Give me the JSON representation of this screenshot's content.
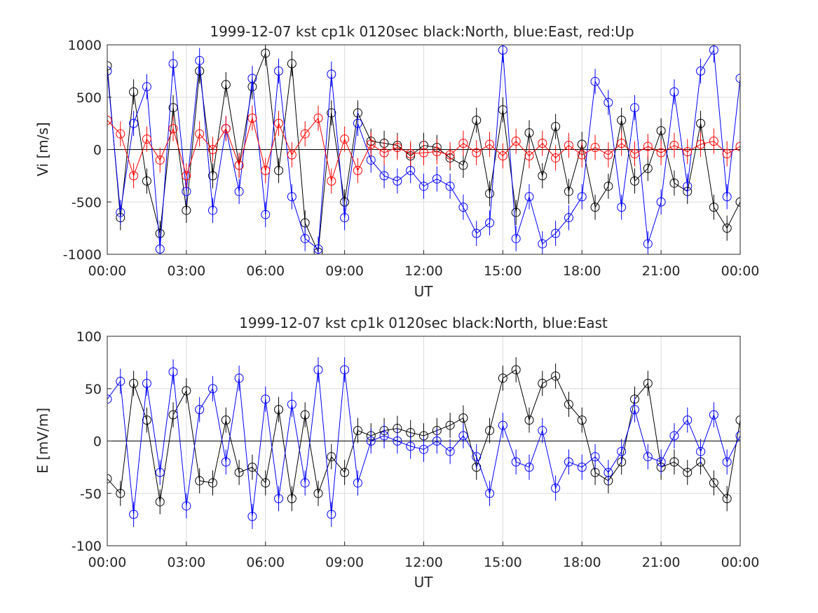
{
  "chart_data": [
    {
      "type": "line",
      "title": "1999-12-07 kst cp1k 0120sec black:North, blue:East, red:Up",
      "xlabel": "UT",
      "ylabel": "Vi [m/s]",
      "ylim": [
        -1000,
        1000
      ],
      "xlim_hours": [
        0,
        24
      ],
      "x_tick_labels": [
        "00:00",
        "03:00",
        "06:00",
        "09:00",
        "12:00",
        "15:00",
        "18:00",
        "21:00",
        "00:00"
      ],
      "y_ticks": [
        1000,
        500,
        0,
        -500,
        -1000
      ],
      "grid": true,
      "colors": {
        "North": "#000000",
        "East": "#0000ff",
        "Up": "#ff0000"
      },
      "series": [
        {
          "name": "North",
          "color": "#000000",
          "x": [
            0.0,
            0.5,
            1.0,
            1.5,
            2.0,
            2.5,
            3.0,
            3.5,
            4.0,
            4.5,
            5.0,
            5.5,
            6.0,
            6.5,
            7.0,
            7.5,
            8.0,
            8.5,
            9.0,
            9.5,
            10.0,
            10.5,
            11.0,
            11.5,
            12.0,
            12.5,
            13.0,
            13.5,
            14.0,
            14.5,
            15.0,
            15.5,
            16.0,
            16.5,
            17.0,
            17.5,
            18.0,
            18.5,
            19.0,
            19.5,
            20.0,
            20.5,
            21.0,
            21.5,
            22.0,
            22.5,
            23.0,
            23.5,
            24.0
          ],
          "y": [
            800,
            -650,
            550,
            -300,
            -800,
            400,
            -580,
            750,
            -250,
            620,
            -150,
            600,
            920,
            -200,
            820,
            -700,
            -980,
            350,
            -500,
            350,
            80,
            60,
            40,
            -60,
            40,
            20,
            -80,
            -150,
            280,
            -420,
            380,
            -600,
            160,
            -250,
            220,
            -400,
            50,
            -550,
            -350,
            280,
            -300,
            -180,
            180,
            -320,
            -400,
            250,
            -550,
            -750,
            -500
          ]
        },
        {
          "name": "East",
          "color": "#0000ff",
          "x": [
            0.0,
            0.5,
            1.0,
            1.5,
            2.0,
            2.5,
            3.0,
            3.5,
            4.0,
            4.5,
            5.0,
            5.5,
            6.0,
            6.5,
            7.0,
            7.5,
            8.0,
            8.5,
            9.0,
            9.5,
            10.0,
            10.5,
            11.0,
            11.5,
            12.0,
            12.5,
            13.0,
            13.5,
            14.0,
            14.5,
            15.0,
            15.5,
            16.0,
            16.5,
            17.0,
            17.5,
            18.0,
            18.5,
            19.0,
            19.5,
            20.0,
            20.5,
            21.0,
            21.5,
            22.0,
            22.5,
            23.0,
            23.5,
            24.0
          ],
          "y": [
            750,
            -600,
            250,
            600,
            -950,
            820,
            -400,
            850,
            -580,
            200,
            -400,
            680,
            -620,
            750,
            -450,
            -850,
            -950,
            720,
            -650,
            250,
            -100,
            -250,
            -300,
            -200,
            -350,
            -280,
            -350,
            -550,
            -800,
            -700,
            950,
            -850,
            -450,
            -900,
            -800,
            -650,
            -450,
            650,
            450,
            -550,
            400,
            -900,
            -500,
            550,
            -350,
            750,
            950,
            -450,
            680
          ]
        },
        {
          "name": "Up",
          "color": "#ff0000",
          "x": [
            0.0,
            0.5,
            1.0,
            1.5,
            2.0,
            2.5,
            3.0,
            3.5,
            4.0,
            4.5,
            5.0,
            5.5,
            6.0,
            6.5,
            7.0,
            7.5,
            8.0,
            8.5,
            9.0,
            9.5,
            10.0,
            10.5,
            11.0,
            11.5,
            12.0,
            12.5,
            13.0,
            13.5,
            14.0,
            14.5,
            15.0,
            15.5,
            16.0,
            16.5,
            17.0,
            17.5,
            18.0,
            18.5,
            19.0,
            19.5,
            20.0,
            20.5,
            21.0,
            21.5,
            22.0,
            22.5,
            23.0,
            23.5,
            24.0
          ],
          "y": [
            280,
            150,
            -250,
            100,
            -100,
            200,
            -250,
            150,
            0,
            200,
            -150,
            300,
            -200,
            250,
            -50,
            150,
            300,
            -300,
            100,
            -200,
            50,
            -30,
            20,
            -40,
            -30,
            -20,
            -50,
            60,
            -30,
            50,
            -60,
            80,
            -60,
            60,
            -80,
            40,
            -50,
            20,
            -50,
            60,
            -40,
            30,
            -30,
            40,
            -20,
            50,
            80,
            -40,
            30
          ]
        }
      ]
    },
    {
      "type": "line",
      "title": "1999-12-07 kst cp1k 0120sec black:North, blue:East",
      "xlabel": "UT",
      "ylabel": "E [mV/m]",
      "ylim": [
        -100,
        100
      ],
      "xlim_hours": [
        0,
        24
      ],
      "x_tick_labels": [
        "00:00",
        "03:00",
        "06:00",
        "09:00",
        "12:00",
        "15:00",
        "18:00",
        "21:00",
        "00:00"
      ],
      "y_ticks": [
        100,
        50,
        0,
        -50,
        -100
      ],
      "grid": true,
      "colors": {
        "North": "#000000",
        "East": "#0000ff"
      },
      "series": [
        {
          "name": "North",
          "color": "#000000",
          "x": [
            0.0,
            0.5,
            1.0,
            1.5,
            2.0,
            2.5,
            3.0,
            3.5,
            4.0,
            4.5,
            5.0,
            5.5,
            6.0,
            6.5,
            7.0,
            7.5,
            8.0,
            8.5,
            9.0,
            9.5,
            10.0,
            10.5,
            11.0,
            11.5,
            12.0,
            12.5,
            13.0,
            13.5,
            14.0,
            14.5,
            15.0,
            15.5,
            16.0,
            16.5,
            17.0,
            17.5,
            18.0,
            18.5,
            19.0,
            19.5,
            20.0,
            20.5,
            21.0,
            21.5,
            22.0,
            22.5,
            23.0,
            23.5,
            24.0
          ],
          "y": [
            -36,
            -50,
            55,
            20,
            -58,
            25,
            48,
            -38,
            -40,
            20,
            -30,
            -25,
            -40,
            30,
            -55,
            25,
            -50,
            -15,
            -30,
            10,
            5,
            10,
            12,
            8,
            5,
            10,
            15,
            22,
            -25,
            10,
            60,
            68,
            20,
            55,
            62,
            35,
            20,
            -30,
            -38,
            -20,
            40,
            55,
            -25,
            -20,
            -30,
            -20,
            -40,
            -55,
            20
          ]
        },
        {
          "name": "East",
          "color": "#0000ff",
          "x": [
            0.0,
            0.5,
            1.0,
            1.5,
            2.0,
            2.5,
            3.0,
            3.5,
            4.0,
            4.5,
            5.0,
            5.5,
            6.0,
            6.5,
            7.0,
            7.5,
            8.0,
            8.5,
            9.0,
            9.5,
            10.0,
            10.5,
            11.0,
            11.5,
            12.0,
            12.5,
            13.0,
            13.5,
            14.0,
            14.5,
            15.0,
            15.5,
            16.0,
            16.5,
            17.0,
            17.5,
            18.0,
            18.5,
            19.0,
            19.5,
            20.0,
            20.5,
            21.0,
            21.5,
            22.0,
            22.5,
            23.0,
            23.5,
            24.0
          ],
          "y": [
            40,
            57,
            -70,
            55,
            -30,
            66,
            -62,
            30,
            50,
            -20,
            60,
            -72,
            40,
            -55,
            35,
            -40,
            68,
            -70,
            68,
            -40,
            0,
            5,
            0,
            -5,
            -8,
            0,
            -10,
            5,
            -15,
            -50,
            15,
            -20,
            -25,
            10,
            -45,
            -20,
            -25,
            -15,
            -30,
            -10,
            30,
            -15,
            -20,
            5,
            20,
            -10,
            25,
            -20,
            5
          ]
        }
      ]
    }
  ]
}
